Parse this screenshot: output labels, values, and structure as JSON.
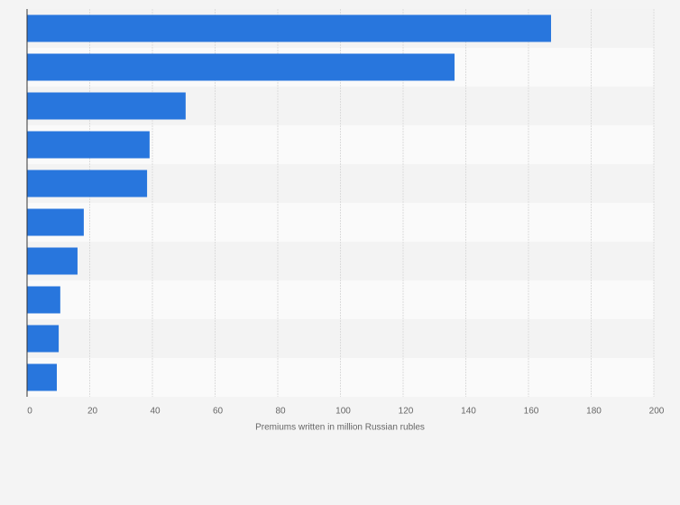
{
  "chart_data": {
    "type": "bar",
    "orientation": "horizontal",
    "x_label": "Premiums written in million Russian rubles",
    "categories": [
      null,
      null,
      null,
      null,
      null,
      null,
      null,
      null,
      null,
      null
    ],
    "values": [
      167.2,
      136.4,
      50.6,
      39.1,
      38.3,
      18.1,
      16.1,
      10.6,
      10.1,
      9.5
    ],
    "color": "#2876dd",
    "xlim": [
      0,
      200
    ],
    "xticks": [
      0,
      20,
      40,
      60,
      80,
      100,
      120,
      140,
      160,
      180,
      200
    ],
    "grid": true
  }
}
